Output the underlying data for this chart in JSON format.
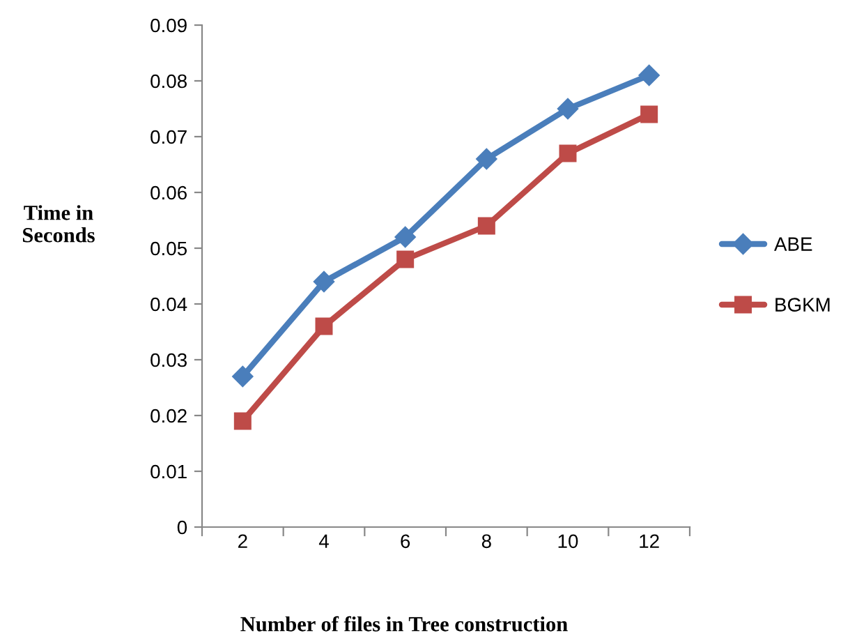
{
  "chart_data": {
    "type": "line",
    "xlabel": "Number of files in Tree construction",
    "ylabel": "Time in\nSeconds",
    "categories": [
      "2",
      "4",
      "6",
      "8",
      "10",
      "12"
    ],
    "series": [
      {
        "name": "ABE",
        "color": "#4a7ebb",
        "marker": "diamond",
        "values": [
          0.027,
          0.044,
          0.052,
          0.066,
          0.075,
          0.081
        ]
      },
      {
        "name": "BGKM",
        "color": "#be4b48",
        "marker": "square",
        "values": [
          0.019,
          0.036,
          0.048,
          0.054,
          0.067,
          0.074
        ]
      }
    ],
    "ylim": [
      0,
      0.09
    ],
    "yticks": [
      0,
      0.01,
      0.02,
      0.03,
      0.04,
      0.05,
      0.06,
      0.07,
      0.08,
      0.09
    ],
    "grid": false,
    "legend": "right",
    "line_style": "solid"
  }
}
